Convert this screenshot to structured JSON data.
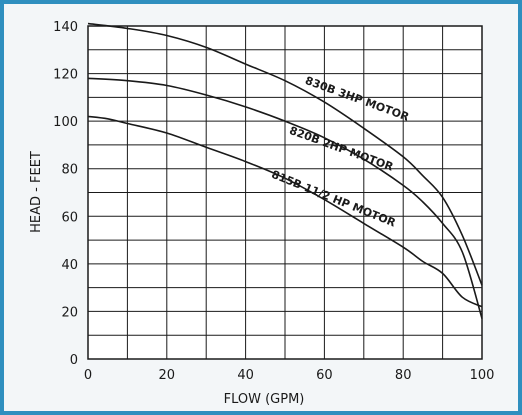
{
  "chart_data": {
    "type": "line",
    "xlabel": "FLOW (GPM)",
    "ylabel": "HEAD - FEET",
    "xlim": [
      0,
      100
    ],
    "ylim": [
      0,
      140
    ],
    "x_ticks": [
      "0",
      "20",
      "40",
      "60",
      "80",
      "100"
    ],
    "y_ticks": [
      "0",
      "20",
      "40",
      "60",
      "80",
      "100",
      "120",
      "140"
    ],
    "grid": true,
    "x_minor_step": 10,
    "y_minor_step": 10,
    "series": [
      {
        "name": "830B 3HP MOTOR",
        "x": [
          0,
          10,
          20,
          30,
          40,
          50,
          60,
          70,
          80,
          85,
          90,
          95,
          100
        ],
        "y": [
          141,
          139,
          136,
          131,
          124,
          117,
          108,
          97,
          85,
          77,
          68,
          52,
          31
        ]
      },
      {
        "name": "820B 2HP MOTOR",
        "x": [
          0,
          10,
          20,
          30,
          40,
          50,
          60,
          70,
          80,
          85,
          90,
          95,
          100
        ],
        "y": [
          118,
          117,
          115,
          111,
          106,
          100,
          93,
          84,
          73,
          66,
          57,
          45,
          17
        ]
      },
      {
        "name": "815B 11/2 HP MOTOR",
        "x": [
          0,
          5,
          10,
          20,
          30,
          40,
          50,
          60,
          70,
          80,
          85,
          90,
          95,
          100
        ],
        "y": [
          102,
          101,
          99,
          95,
          89,
          83,
          76,
          67,
          57,
          47,
          41,
          36,
          26,
          22
        ]
      }
    ]
  }
}
